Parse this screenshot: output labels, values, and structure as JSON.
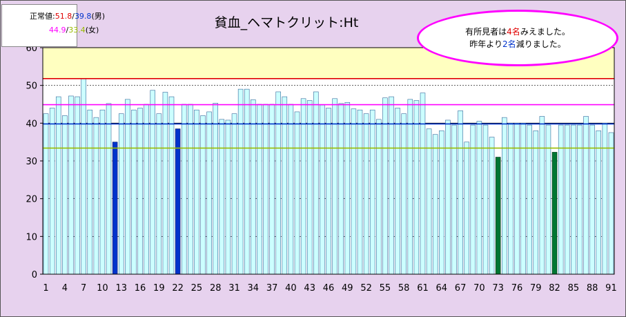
{
  "chart_data": {
    "type": "bar",
    "title": "貧血_ヘマトクリット:Ht",
    "ylim": [
      0,
      60
    ],
    "yticks": [
      0,
      10,
      20,
      30,
      40,
      50,
      60
    ],
    "xtick_labels": [
      1,
      4,
      7,
      10,
      13,
      16,
      19,
      22,
      25,
      28,
      31,
      34,
      37,
      40,
      43,
      46,
      49,
      52,
      55,
      58,
      61,
      64,
      67,
      70,
      73,
      76,
      79,
      82,
      85,
      88,
      91
    ],
    "categories": [
      1,
      2,
      3,
      4,
      5,
      6,
      7,
      8,
      9,
      10,
      11,
      12,
      13,
      14,
      15,
      16,
      17,
      18,
      19,
      20,
      21,
      22,
      23,
      24,
      25,
      26,
      27,
      28,
      29,
      30,
      31,
      32,
      33,
      34,
      35,
      36,
      37,
      38,
      39,
      40,
      41,
      42,
      43,
      44,
      45,
      46,
      47,
      48,
      49,
      50,
      51,
      52,
      53,
      54,
      55,
      56,
      57,
      58,
      59,
      60,
      61,
      62,
      63,
      64,
      65,
      66,
      67,
      68,
      69,
      70,
      71,
      72,
      73,
      74,
      75,
      76,
      77,
      78,
      79,
      80,
      81,
      82,
      83,
      84,
      85,
      86,
      87,
      88,
      89,
      90,
      91
    ],
    "values": [
      42.5,
      44.0,
      47.0,
      42.0,
      47.2,
      47.0,
      51.8,
      43.5,
      41.5,
      43.5,
      45.2,
      35.0,
      42.5,
      46.3,
      43.5,
      44.0,
      45.0,
      48.7,
      42.5,
      48.2,
      47.0,
      38.5,
      45.0,
      45.0,
      43.5,
      42.0,
      43.0,
      45.3,
      41.0,
      40.8,
      42.5,
      49.0,
      49.0,
      46.2,
      45.0,
      45.0,
      45.0,
      48.3,
      47.0,
      45.0,
      43.0,
      46.5,
      46.0,
      48.3,
      44.8,
      44.0,
      46.5,
      45.2,
      45.5,
      43.8,
      43.5,
      42.5,
      43.5,
      41.0,
      46.7,
      47.0,
      44.0,
      42.5,
      46.3,
      46.0,
      48.0,
      38.5,
      37.0,
      38.0,
      40.8,
      39.5,
      43.3,
      35.0,
      39.5,
      40.5,
      39.5,
      36.3,
      31.0,
      41.5,
      40.0,
      40.0,
      40.0,
      39.5,
      38.0,
      41.8,
      39.5,
      32.3,
      39.5,
      39.5,
      39.5,
      39.5,
      41.8,
      39.5,
      38.0,
      40.0,
      37.5
    ],
    "highlight": {
      "male_low": {
        "color": "#0033cc",
        "indices": [
          12,
          22
        ]
      },
      "female_low": {
        "color": "#007733",
        "indices": [
          73,
          82
        ]
      }
    },
    "reference_lines": [
      {
        "value": 51.8,
        "color": "#e00000"
      },
      {
        "value": 44.9,
        "color": "#ff00ff"
      },
      {
        "value": 39.8,
        "color": "#0033cc"
      },
      {
        "value": 33.4,
        "color": "#99bb00"
      }
    ],
    "upper_band_color": "#ffffc0",
    "bar_color": "#ccffff",
    "grid": true
  },
  "legend": {
    "row1_label": "正常値:",
    "male_upper": "51.8",
    "slash": "/",
    "male_lower": "39.8",
    "male_label": "(男)",
    "female_upper": "44.9",
    "female_lower": "33.4",
    "female_label": "(女)"
  },
  "note": {
    "l1_a": "有所見者は",
    "l1_num": "4名",
    "l1_b": "みえました。",
    "l2_a": "昨年より",
    "l2_num": "2名",
    "l2_b": "減りました。"
  }
}
